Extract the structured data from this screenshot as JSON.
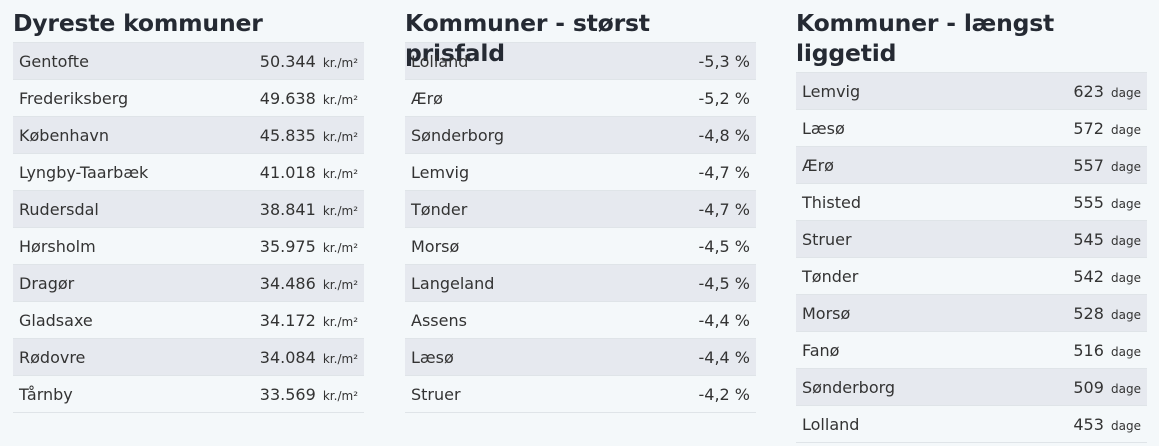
{
  "panels": [
    {
      "title": "Dyreste kommuner",
      "unit": "kr./m²",
      "rows": [
        {
          "name": "Gentofte",
          "value": "50.344"
        },
        {
          "name": "Frederiksberg",
          "value": "49.638"
        },
        {
          "name": "København",
          "value": "45.835"
        },
        {
          "name": "Lyngby-Taarbæk",
          "value": "41.018"
        },
        {
          "name": "Rudersdal",
          "value": "38.841"
        },
        {
          "name": "Hørsholm",
          "value": "35.975"
        },
        {
          "name": "Dragør",
          "value": "34.486"
        },
        {
          "name": "Gladsaxe",
          "value": "34.172"
        },
        {
          "name": "Rødovre",
          "value": "34.084"
        },
        {
          "name": "Tårnby",
          "value": "33.569"
        }
      ]
    },
    {
      "title": "Kommuner - størst prisfald",
      "unit": "",
      "rows": [
        {
          "name": "Lolland",
          "value": "-5,3 %"
        },
        {
          "name": "Ærø",
          "value": "-5,2 %"
        },
        {
          "name": "Sønderborg",
          "value": "-4,8 %"
        },
        {
          "name": "Lemvig",
          "value": "-4,7 %"
        },
        {
          "name": "Tønder",
          "value": "-4,7 %"
        },
        {
          "name": "Morsø",
          "value": "-4,5 %"
        },
        {
          "name": "Langeland",
          "value": "-4,5 %"
        },
        {
          "name": "Assens",
          "value": "-4,4 %"
        },
        {
          "name": "Læsø",
          "value": "-4,4 %"
        },
        {
          "name": "Struer",
          "value": "-4,2 %"
        }
      ]
    },
    {
      "title": "Kommuner - længst liggetid",
      "unit": "dage",
      "rows": [
        {
          "name": "Lemvig",
          "value": "623"
        },
        {
          "name": "Læsø",
          "value": "572"
        },
        {
          "name": "Ærø",
          "value": "557"
        },
        {
          "name": "Thisted",
          "value": "555"
        },
        {
          "name": "Struer",
          "value": "545"
        },
        {
          "name": "Tønder",
          "value": "542"
        },
        {
          "name": "Morsø",
          "value": "528"
        },
        {
          "name": "Fanø",
          "value": "516"
        },
        {
          "name": "Sønderborg",
          "value": "509"
        },
        {
          "name": "Lolland",
          "value": "453"
        }
      ]
    }
  ],
  "colors": {
    "background": "#f4f8fa",
    "row_shaded": "#e6e9ef",
    "title": "#252a33",
    "text": "#333333",
    "divider": "#dfe4e8"
  }
}
